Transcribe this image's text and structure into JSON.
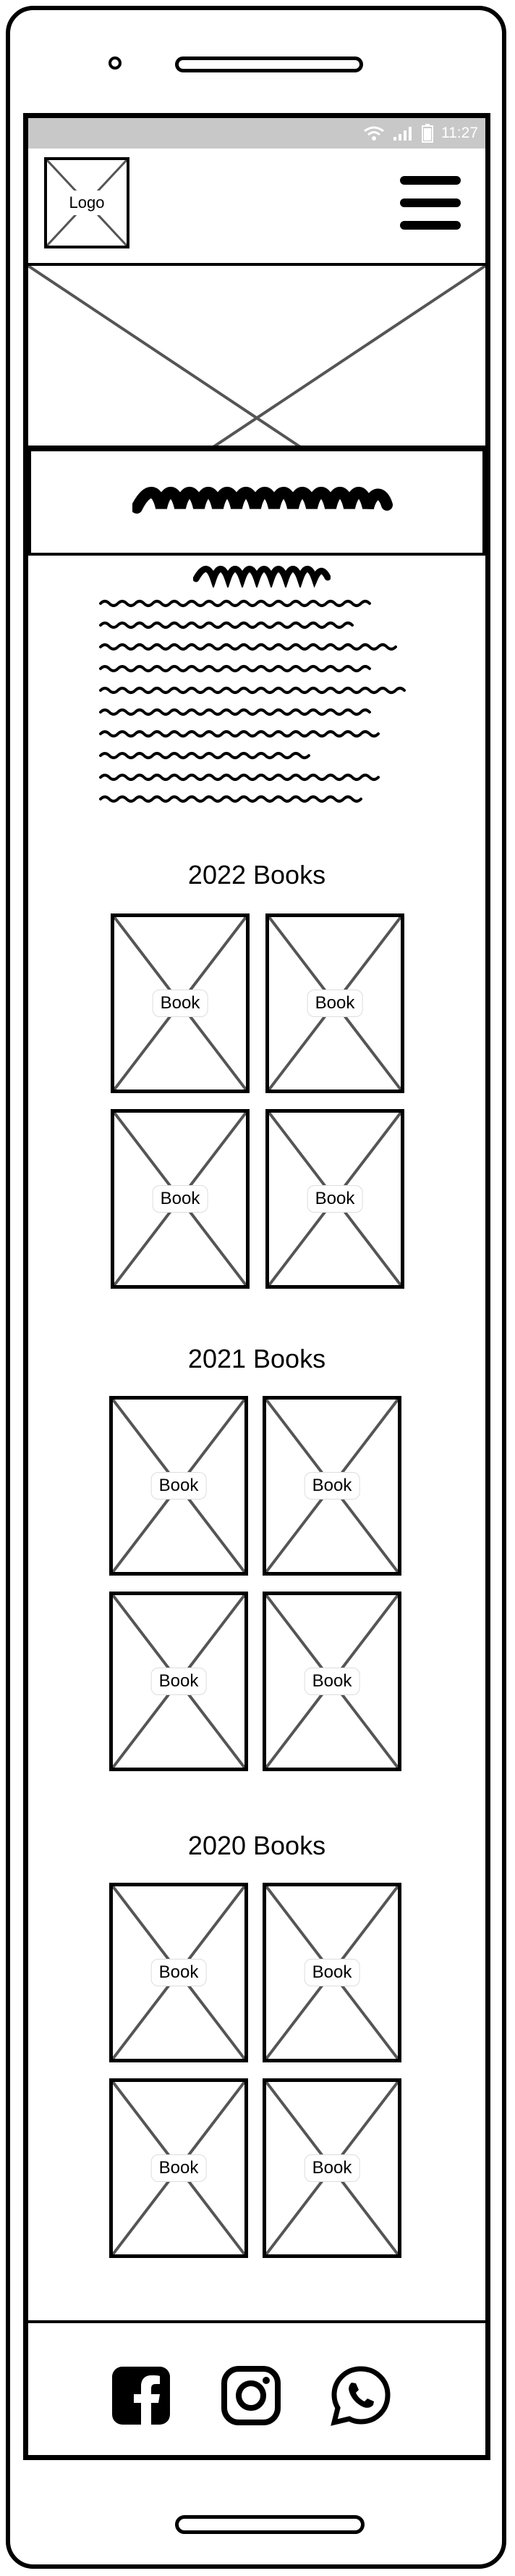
{
  "status_bar": {
    "time": "11:27"
  },
  "header": {
    "logo_label": "Logo",
    "menu_icon": "hamburger-menu-icon"
  },
  "sections": [
    {
      "title": "2022 Books",
      "books": [
        "Book",
        "Book",
        "Book",
        "Book"
      ]
    },
    {
      "title": "2021 Books",
      "books": [
        "Book",
        "Book",
        "Book",
        "Book"
      ]
    },
    {
      "title": "2020 Books",
      "books": [
        "Book",
        "Book",
        "Book",
        "Book"
      ]
    }
  ],
  "footer": {
    "social_icons": [
      "facebook-icon",
      "instagram-icon",
      "whatsapp-icon"
    ]
  },
  "colors": {
    "status_bar_bg": "#c8c8c8",
    "stroke": "#000000",
    "placeholder_line": "#555555"
  }
}
